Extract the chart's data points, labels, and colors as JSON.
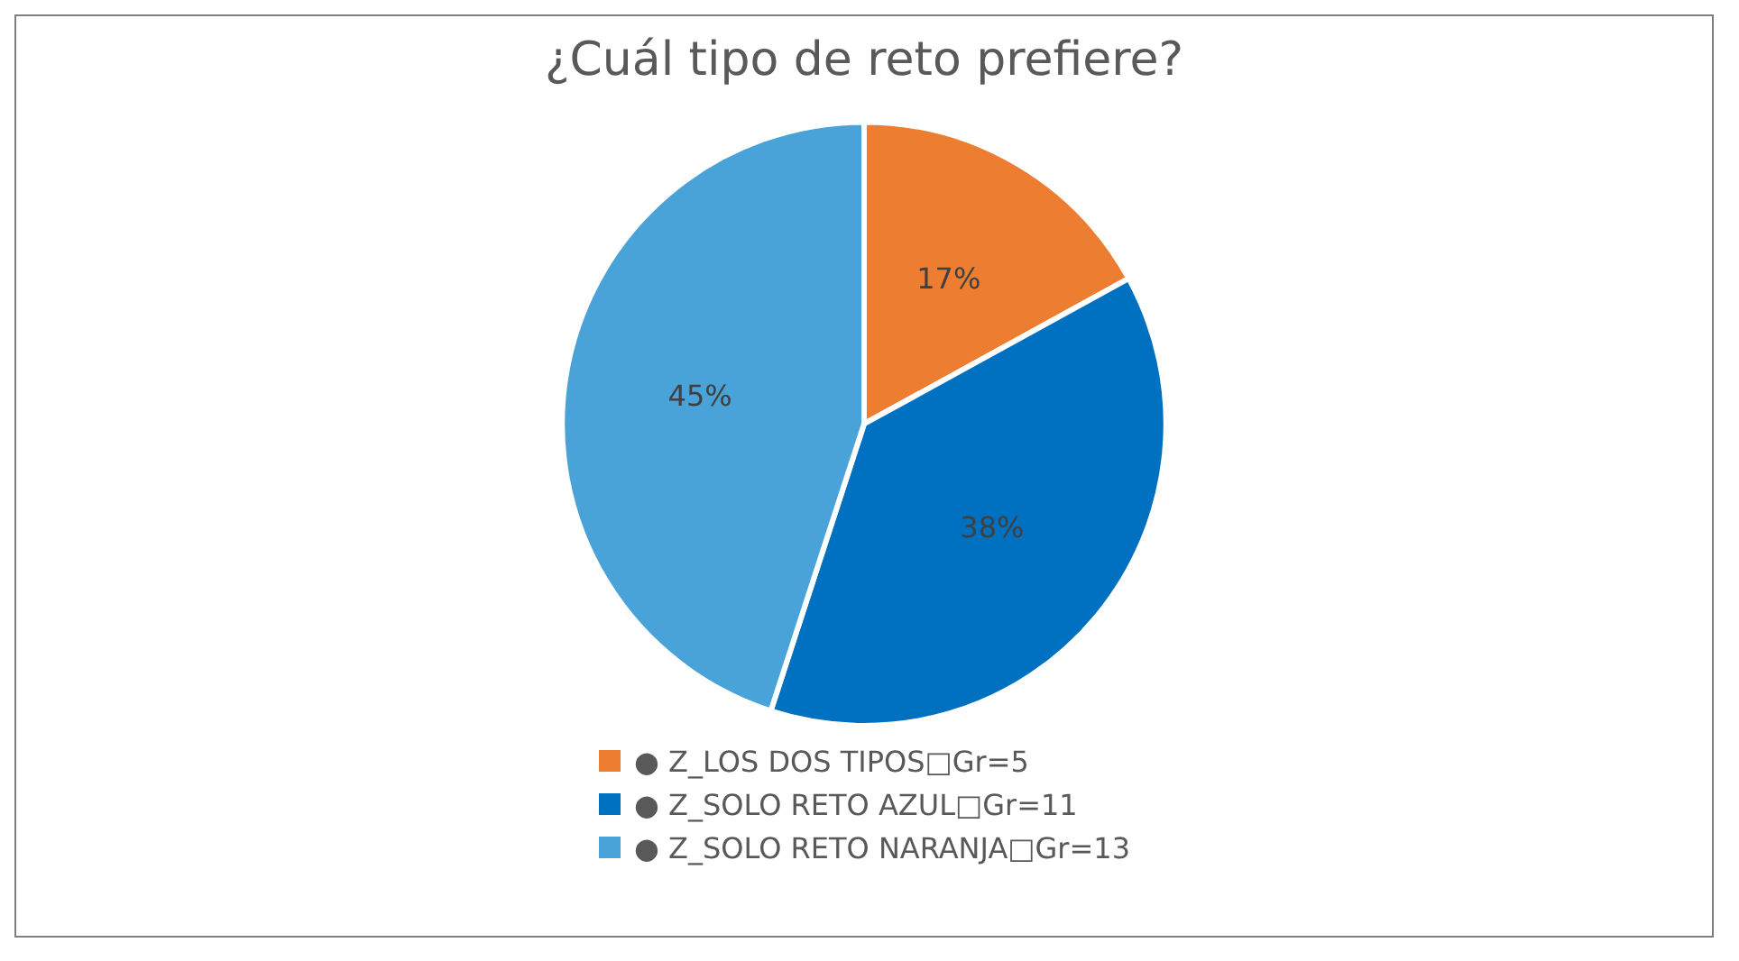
{
  "chart_data": {
    "type": "pie",
    "title": "¿Cuál tipo de reto prefiere?",
    "categories": [
      "● Z_LOS DOS TIPOS□Gr=5",
      "● Z_SOLO RETO AZUL□Gr=11",
      "● Z_SOLO RETO NARANJA□Gr=13"
    ],
    "values": [
      17,
      38,
      45
    ],
    "colors": [
      "#ed7d31",
      "#0070c0",
      "#4aa3d8"
    ],
    "value_labels": [
      "17%",
      "38%",
      "45%"
    ],
    "legend": "bottom"
  }
}
